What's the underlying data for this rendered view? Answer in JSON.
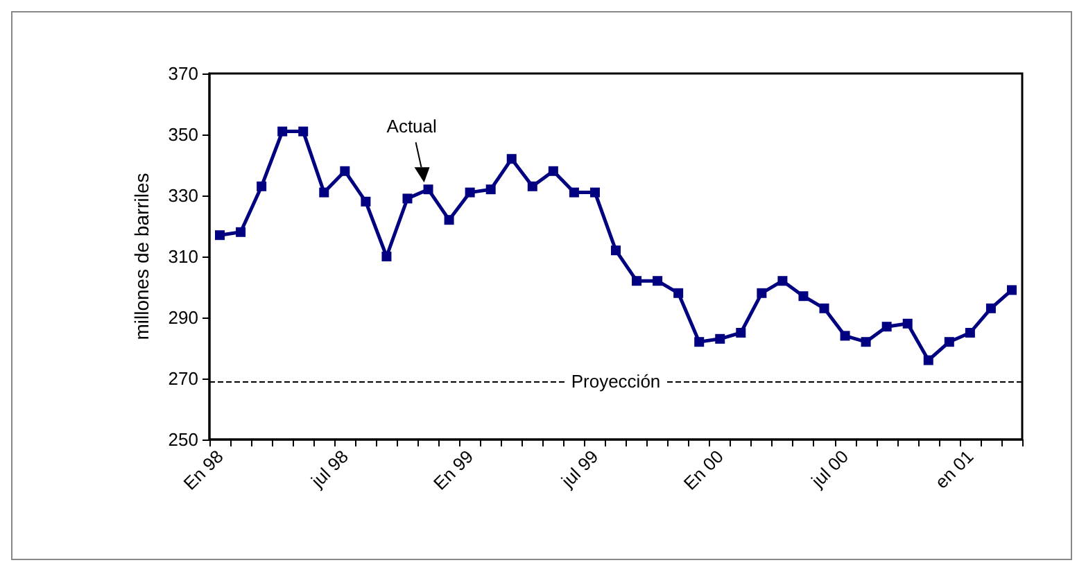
{
  "chart_data": {
    "type": "line",
    "ylabel": "millones de barriles",
    "categories": [
      "En 98",
      null,
      null,
      null,
      null,
      null,
      "jul 98",
      null,
      null,
      null,
      null,
      null,
      "En 99",
      null,
      null,
      null,
      null,
      null,
      "jul 99",
      null,
      null,
      null,
      null,
      null,
      "En 00",
      null,
      null,
      null,
      null,
      null,
      "jul 00",
      null,
      null,
      null,
      null,
      null,
      "en 01",
      null,
      null
    ],
    "series": [
      {
        "color": "#000080",
        "values": [
          317,
          318,
          333,
          351,
          351,
          331,
          338,
          328,
          310,
          329,
          332,
          322,
          331,
          332,
          342,
          333,
          338,
          331,
          331,
          312,
          302,
          302,
          298,
          282,
          283,
          285,
          298,
          302,
          297,
          293,
          284,
          282,
          287,
          288,
          276,
          282,
          285,
          293,
          299
        ]
      }
    ],
    "ylim": [
      250,
      370
    ],
    "yticks": [
      250,
      270,
      290,
      310,
      330,
      350,
      370
    ],
    "ref_lines": [
      {
        "axis": "y",
        "value": 269,
        "label": "Proyección",
        "color": "#000000",
        "line_style": "dashed"
      }
    ],
    "annotations": [
      {
        "text": "Actual",
        "y": 332
      }
    ],
    "marker": "square",
    "line_style": "solid",
    "grid": false
  }
}
